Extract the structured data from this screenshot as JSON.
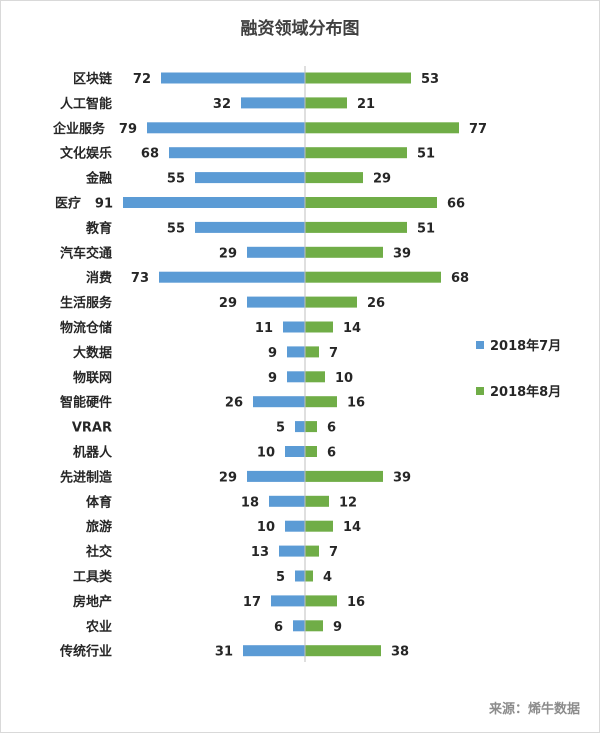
{
  "title": "融资领域分布图",
  "source": "来源：烯牛数据",
  "legend": {
    "jul": "2018年7月",
    "aug": "2018年8月"
  },
  "colors": {
    "jul": "#5b9bd5",
    "aug": "#70ad47",
    "axis": "#bfbfbf"
  },
  "chart_data": {
    "type": "bar",
    "title": "融资领域分布图",
    "orientation": "horizontal-butterfly",
    "categories": [
      "区块链",
      "人工智能",
      "企业服务",
      "文化娱乐",
      "金融",
      "医疗",
      "教育",
      "汽车交通",
      "消费",
      "生活服务",
      "物流仓储",
      "大数据",
      "物联网",
      "智能硬件",
      "VRAR",
      "机器人",
      "先进制造",
      "体育",
      "旅游",
      "社交",
      "工具类",
      "房地产",
      "农业",
      "传统行业"
    ],
    "series": [
      {
        "name": "2018年7月",
        "side": "left",
        "values": [
          72,
          32,
          79,
          68,
          55,
          91,
          55,
          29,
          73,
          29,
          11,
          9,
          9,
          26,
          5,
          10,
          29,
          18,
          10,
          13,
          5,
          17,
          6,
          31
        ]
      },
      {
        "name": "2018年8月",
        "side": "right",
        "values": [
          53,
          21,
          77,
          51,
          29,
          66,
          51,
          39,
          68,
          26,
          14,
          7,
          10,
          16,
          6,
          6,
          39,
          12,
          14,
          7,
          4,
          16,
          9,
          38
        ]
      }
    ],
    "legend_position": "right",
    "grid": false
  }
}
